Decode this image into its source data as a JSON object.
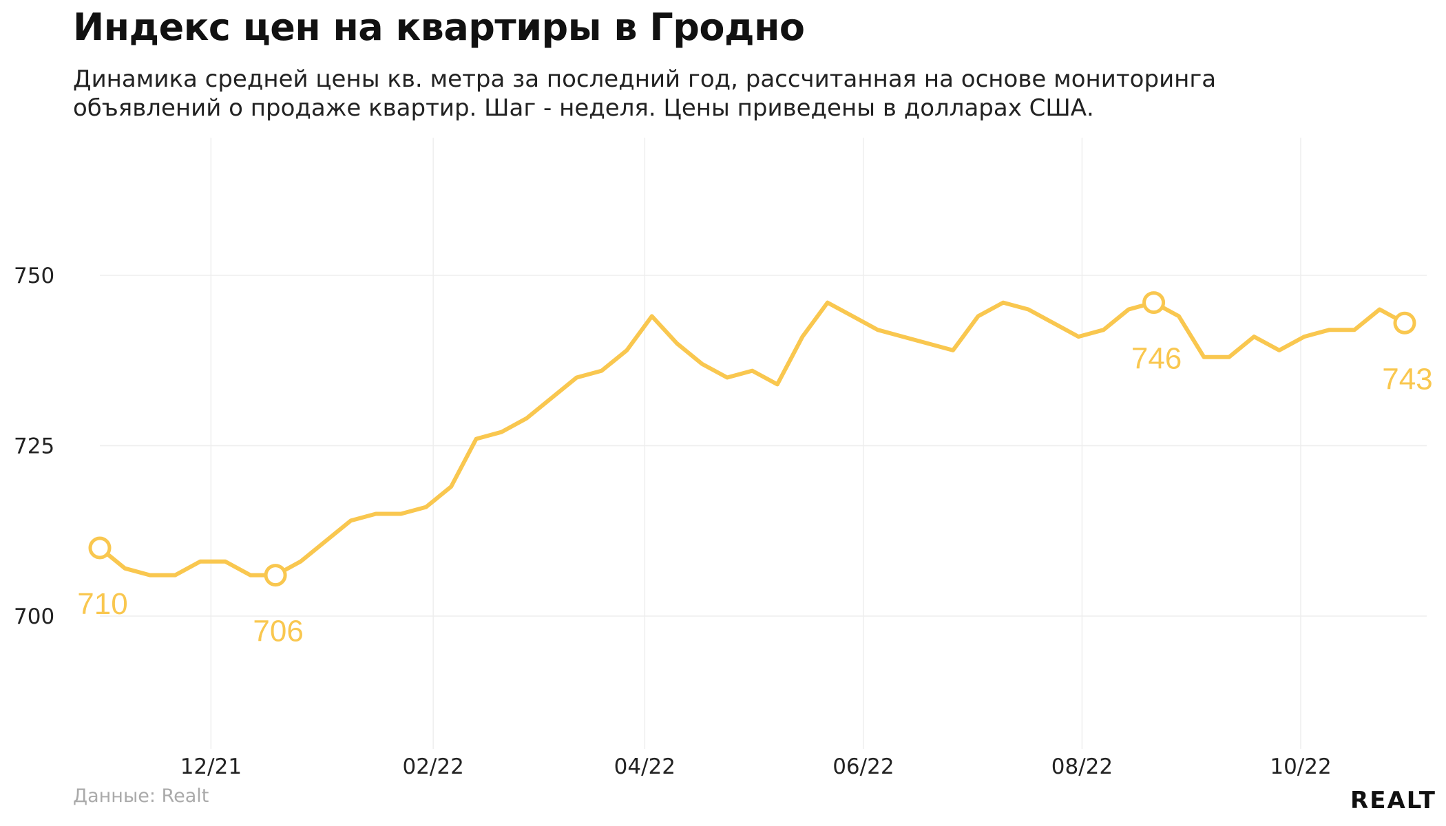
{
  "title": "Индекс цен на квартиры в Гродно",
  "subtitle_lines": [
    "Динамика средней цены кв. метра за последний год, рассчитанная на основе мониторинга",
    "объявлений о продаже квартир. Шаг - неделя. Цены приведены в долларах США."
  ],
  "source": "Данные: Realt",
  "brand": "REALT",
  "colors": {
    "line": "#F9C74F",
    "grid": "#eeeeee",
    "axis_text": "#222222"
  },
  "chart_data": {
    "type": "line",
    "x_start": "2021-10-31",
    "step": "week",
    "ylim": [
      680,
      770
    ],
    "yticks": [
      700,
      725,
      750
    ],
    "xticks": [
      {
        "date": "2021-12-01",
        "label": "12/21"
      },
      {
        "date": "2022-02-01",
        "label": "02/22"
      },
      {
        "date": "2022-04-01",
        "label": "04/22"
      },
      {
        "date": "2022-06-01",
        "label": "06/22"
      },
      {
        "date": "2022-08-01",
        "label": "08/22"
      },
      {
        "date": "2022-10-01",
        "label": "10/22"
      }
    ],
    "grid": true,
    "series": [
      {
        "values": [
          710,
          707,
          706,
          706,
          708,
          708,
          706,
          706,
          708,
          711,
          714,
          715,
          715,
          716,
          719,
          726,
          727,
          729,
          732,
          735,
          736,
          739,
          744,
          740,
          737,
          735,
          736,
          734,
          741,
          746,
          744,
          742,
          741,
          740,
          739,
          744,
          746,
          745,
          743,
          741,
          742,
          745,
          746,
          744,
          738,
          738,
          741,
          739,
          741,
          742,
          742,
          745,
          743
        ]
      }
    ],
    "annotations": [
      {
        "index": 0,
        "label": "710"
      },
      {
        "index": 7,
        "label": "706"
      },
      {
        "index": 42,
        "label": "746"
      },
      {
        "index": 52,
        "label": "743"
      }
    ]
  }
}
